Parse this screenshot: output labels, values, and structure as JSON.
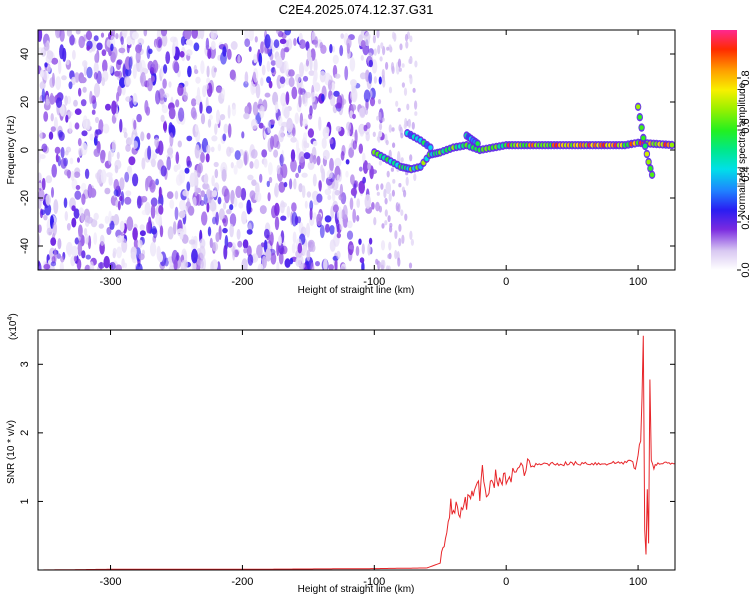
{
  "title": "C2E4.2025.074.12.37.G31",
  "chart_data": [
    {
      "type": "heatmap",
      "xlabel": "Height of straight line (km)",
      "ylabel": "Frequency (Hz)",
      "xlim": [
        -355,
        128
      ],
      "ylim": [
        -50,
        50
      ],
      "xticks": [
        -300,
        -200,
        -100,
        0,
        100
      ],
      "yticks": [
        -40,
        -20,
        0,
        20,
        40
      ],
      "colorbar": {
        "label": "Normalized spectral amplitude",
        "ticks": [
          0.0,
          0.2,
          0.4,
          0.6,
          0.8
        ],
        "range": [
          0,
          1
        ]
      },
      "signal_track": [
        {
          "x": -100,
          "y": -1
        },
        {
          "x": -90,
          "y": -4
        },
        {
          "x": -80,
          "y": -7
        },
        {
          "x": -72,
          "y": -8
        },
        {
          "x": -65,
          "y": -7
        },
        {
          "x": -58,
          "y": -2
        },
        {
          "x": -50,
          "y": -1
        },
        {
          "x": -40,
          "y": 1
        },
        {
          "x": -30,
          "y": 2
        },
        {
          "x": -20,
          "y": 0
        },
        {
          "x": -10,
          "y": 1
        },
        {
          "x": 0,
          "y": 2
        },
        {
          "x": 50,
          "y": 2
        },
        {
          "x": 90,
          "y": 2
        },
        {
          "x": 100,
          "y": 3
        },
        {
          "x": 128,
          "y": 2
        }
      ],
      "branches": [
        {
          "x": [
            -75,
            -65,
            -55
          ],
          "y": [
            7,
            4,
            0
          ]
        },
        {
          "x": [
            -30,
            -25,
            -20
          ],
          "y": [
            6,
            4,
            2
          ]
        },
        {
          "x": [
            100,
            104,
            108,
            112
          ],
          "y": [
            18,
            5,
            -5,
            -13
          ]
        }
      ]
    },
    {
      "type": "line",
      "xlabel": "Height of straight line (km)",
      "ylabel": "SNR (10 * v/v)",
      "ymultiplier": "(x10",
      "ymultiplier_exp": "4",
      "ymultiplier_close": ")",
      "xlim": [
        -355,
        128
      ],
      "ylim": [
        0,
        3.5
      ],
      "xticks": [
        -300,
        -200,
        -100,
        0,
        100
      ],
      "yticks": [
        1,
        2,
        3
      ],
      "series": [
        {
          "color": "#e8262a",
          "x": [
            -355,
            -300,
            -200,
            -100,
            -60,
            -50,
            -48,
            -45,
            -42,
            -40,
            -38,
            -35,
            -32,
            -30,
            -28,
            -25,
            -22,
            -20,
            -18,
            -15,
            -12,
            -10,
            -8,
            -5,
            -2,
            0,
            5,
            10,
            15,
            20,
            30,
            40,
            50,
            60,
            70,
            80,
            90,
            95,
            98,
            100,
            102,
            103,
            104,
            105,
            106,
            107,
            108,
            109,
            110,
            112,
            115,
            120,
            128
          ],
          "y": [
            0.0,
            0.01,
            0.01,
            0.02,
            0.03,
            0.1,
            0.3,
            0.55,
            1.0,
            0.75,
            0.95,
            0.7,
            1.05,
            0.9,
            1.15,
            1.0,
            1.3,
            1.05,
            1.5,
            1.1,
            1.25,
            1.2,
            1.35,
            1.25,
            1.3,
            1.35,
            1.42,
            1.45,
            1.5,
            1.52,
            1.55,
            1.55,
            1.55,
            1.56,
            1.55,
            1.56,
            1.57,
            1.6,
            1.45,
            1.7,
            1.9,
            2.5,
            3.4,
            0.6,
            0.2,
            1.2,
            0.4,
            2.8,
            1.6,
            1.5,
            1.55,
            1.55,
            1.55
          ]
        }
      ]
    }
  ]
}
